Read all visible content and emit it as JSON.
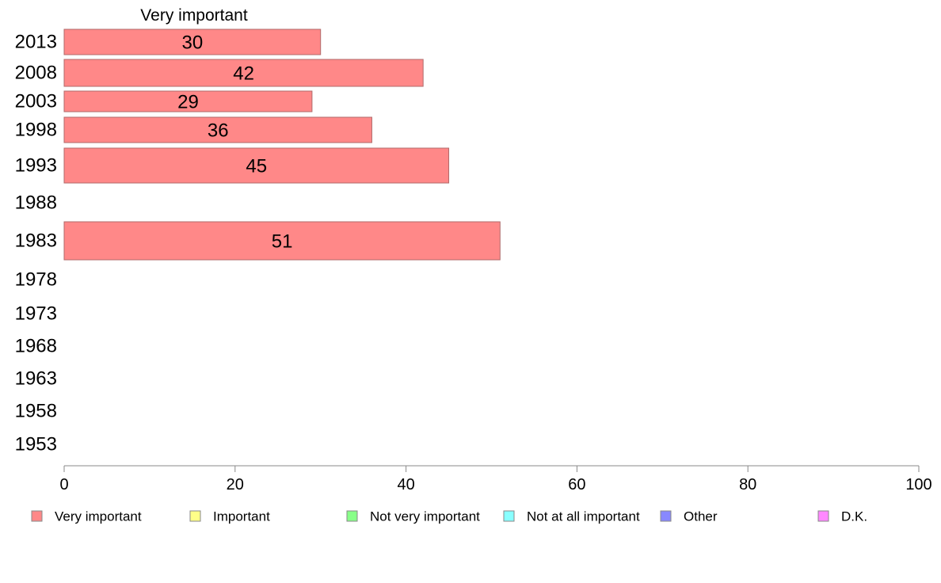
{
  "chart_data": {
    "type": "bar",
    "orientation": "horizontal",
    "header": "Very important",
    "categories": [
      "2013",
      "2008",
      "2003",
      "1998",
      "1993",
      "1988",
      "1983",
      "1978",
      "1973",
      "1968",
      "1963",
      "1958",
      "1953"
    ],
    "values": [
      30,
      42,
      29,
      36,
      45,
      null,
      51,
      null,
      null,
      null,
      null,
      null,
      null
    ],
    "data_labels": [
      "30",
      "42",
      "29",
      "36",
      "45",
      "",
      "51",
      "",
      "",
      "",
      "",
      "",
      ""
    ],
    "xlim": [
      0,
      100
    ],
    "x_ticks": [
      "0",
      "20",
      "40",
      "60",
      "80",
      "100"
    ],
    "grid": false,
    "legend_position": "bottom",
    "legend": [
      {
        "label": "Very important",
        "color": "#ff8888"
      },
      {
        "label": "Important",
        "color": "#ffff88"
      },
      {
        "label": "Not very important",
        "color": "#88ff88"
      },
      {
        "label": "Not at all important",
        "color": "#88ffff"
      },
      {
        "label": "Other",
        "color": "#8888ff"
      },
      {
        "label": "D.K.",
        "color": "#ff88ff"
      }
    ],
    "bar_color": "#ff8888"
  }
}
